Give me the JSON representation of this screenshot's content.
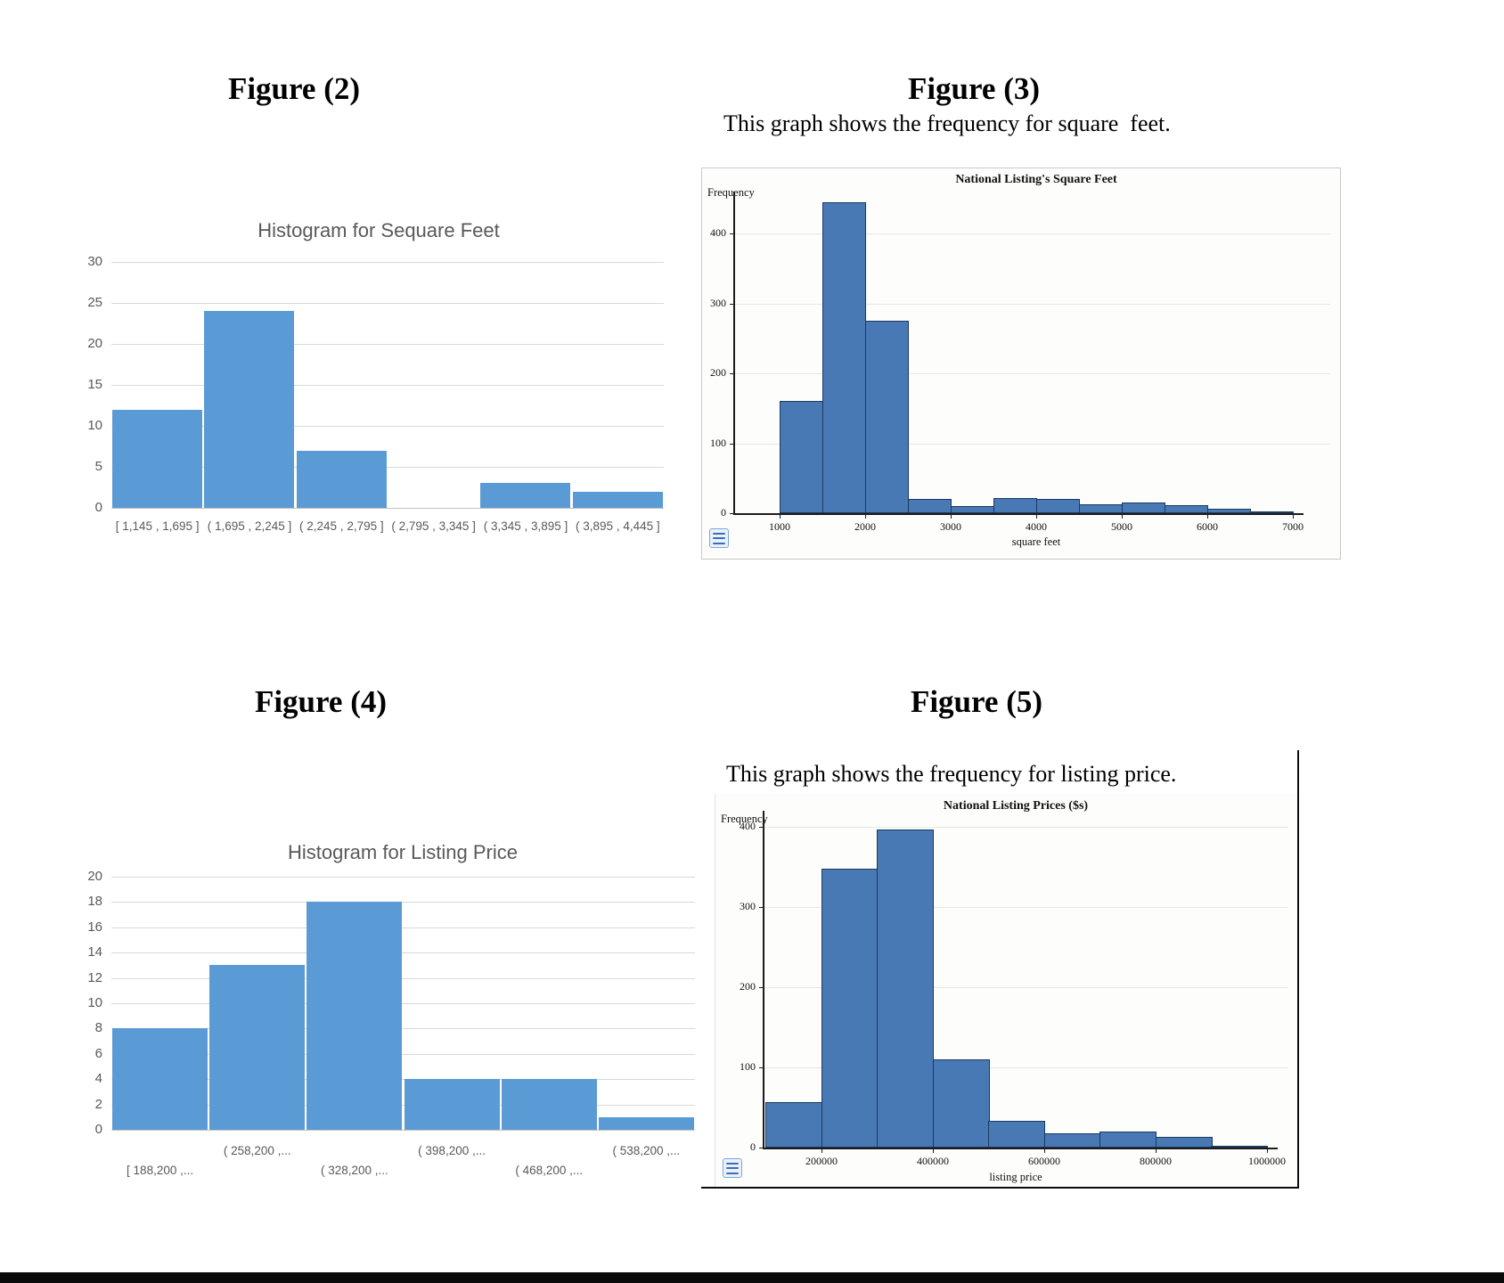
{
  "page": {
    "figure2": {
      "heading": "Figure (2)"
    },
    "figure3": {
      "heading": "Figure (3)",
      "caption": "This graph shows the frequency for square  feet."
    },
    "figure4": {
      "heading": "Figure (4)"
    },
    "figure5": {
      "heading": "Figure (5)",
      "caption": "This graph shows the frequency for listing price."
    },
    "icons": {
      "chart_options": "list-icon"
    }
  },
  "colors": {
    "excel_bar": "#5b9bd5",
    "excel_text": "#595959",
    "excel_grid": "#d9d9d9",
    "excel_axis": "#bfbfbf",
    "plot_bar_fill": "#4879b4",
    "plot_bar_border": "#1b3a5f",
    "plot_grid": "#e7e7e7",
    "plot_box_bg": "#fdfdfb"
  },
  "chart_data": [
    {
      "id": "fig2",
      "type": "bar",
      "title": "Histogram for Sequare Feet",
      "categories": [
        "[ 1,145 ,  1,695 ]",
        "( 1,695 ,  2,245 ]",
        "( 2,245 ,  2,795 ]",
        "( 2,795 ,  3,345 ]",
        "( 3,345 ,  3,895 ]",
        "( 3,895 ,  4,445 ]"
      ],
      "values": [
        12,
        24,
        7,
        0,
        3,
        2
      ],
      "xlabel": "",
      "ylabel": "",
      "ylim": [
        0,
        30
      ],
      "ytick_step": 5,
      "grid": true,
      "legend": "none"
    },
    {
      "id": "fig3",
      "type": "histogram",
      "title": "National Listing's Square Feet",
      "ylabel": "Frequency",
      "xlabel": "square feet",
      "bin_start": 1000,
      "bin_width": 500,
      "values": [
        160,
        445,
        275,
        20,
        10,
        22,
        20,
        13,
        15,
        12,
        7,
        2
      ],
      "xticks": [
        "1000",
        "2000",
        "3000",
        "4000",
        "5000",
        "6000",
        "7000"
      ],
      "yticks": [
        0,
        100,
        200,
        300,
        400
      ],
      "ylim": [
        0,
        460
      ],
      "grid": true,
      "legend": "none"
    },
    {
      "id": "fig4",
      "type": "bar",
      "title": "Histogram for Listing Price",
      "categories": [
        "[ 188,200 ,...",
        "( 258,200 ,...",
        "( 328,200 ,...",
        "( 398,200 ,...",
        "( 468,200 ,...",
        "( 538,200 ,..."
      ],
      "label_rows": {
        "upper_bins": [
          1,
          3,
          5
        ],
        "lower_bins": [
          0,
          2,
          4
        ]
      },
      "values": [
        8,
        13,
        18,
        4,
        4,
        1
      ],
      "xlabel": "",
      "ylabel": "",
      "ylim": [
        0,
        20
      ],
      "ytick_step": 2,
      "grid": true,
      "legend": "none"
    },
    {
      "id": "fig5",
      "type": "histogram",
      "title": "National Listing Prices ($s)",
      "ylabel": "Frequency",
      "xlabel": "listing price",
      "bin_start": 100000,
      "bin_width": 100000,
      "values": [
        57,
        348,
        397,
        110,
        33,
        18,
        20,
        13,
        2
      ],
      "xticks": [
        "200000",
        "400000",
        "600000",
        "800000",
        "1000000"
      ],
      "yticks": [
        0,
        100,
        200,
        300,
        400
      ],
      "ylim": [
        0,
        420
      ],
      "grid": true,
      "legend": "none"
    }
  ]
}
